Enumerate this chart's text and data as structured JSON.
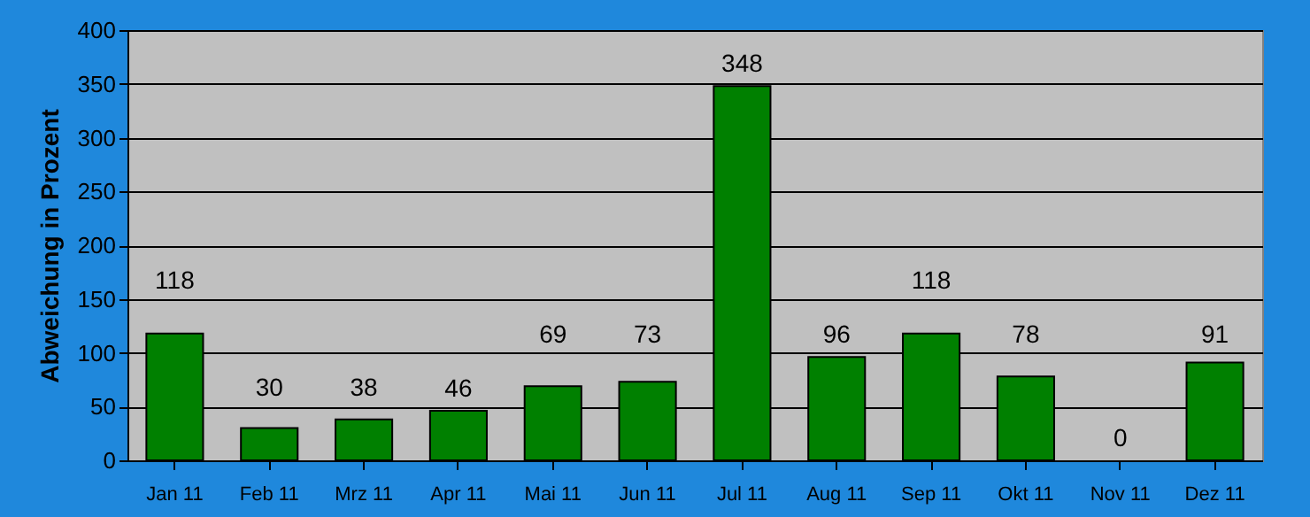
{
  "chart_data": {
    "type": "bar",
    "ylabel": "Abweichung in Prozent",
    "categories": [
      "Jan 11",
      "Feb 11",
      "Mrz 11",
      "Apr 11",
      "Mai 11",
      "Jun 11",
      "Jul 11",
      "Aug 11",
      "Sep 11",
      "Okt 11",
      "Nov 11",
      "Dez 11"
    ],
    "values": [
      118,
      30,
      38,
      46,
      69,
      73,
      348,
      96,
      118,
      78,
      0,
      91
    ],
    "color": "#008000",
    "ylim": [
      0,
      400
    ],
    "yticks": [
      0,
      50,
      100,
      150,
      200,
      250,
      300,
      350,
      400
    ],
    "grid": "y",
    "data_labels": true
  }
}
